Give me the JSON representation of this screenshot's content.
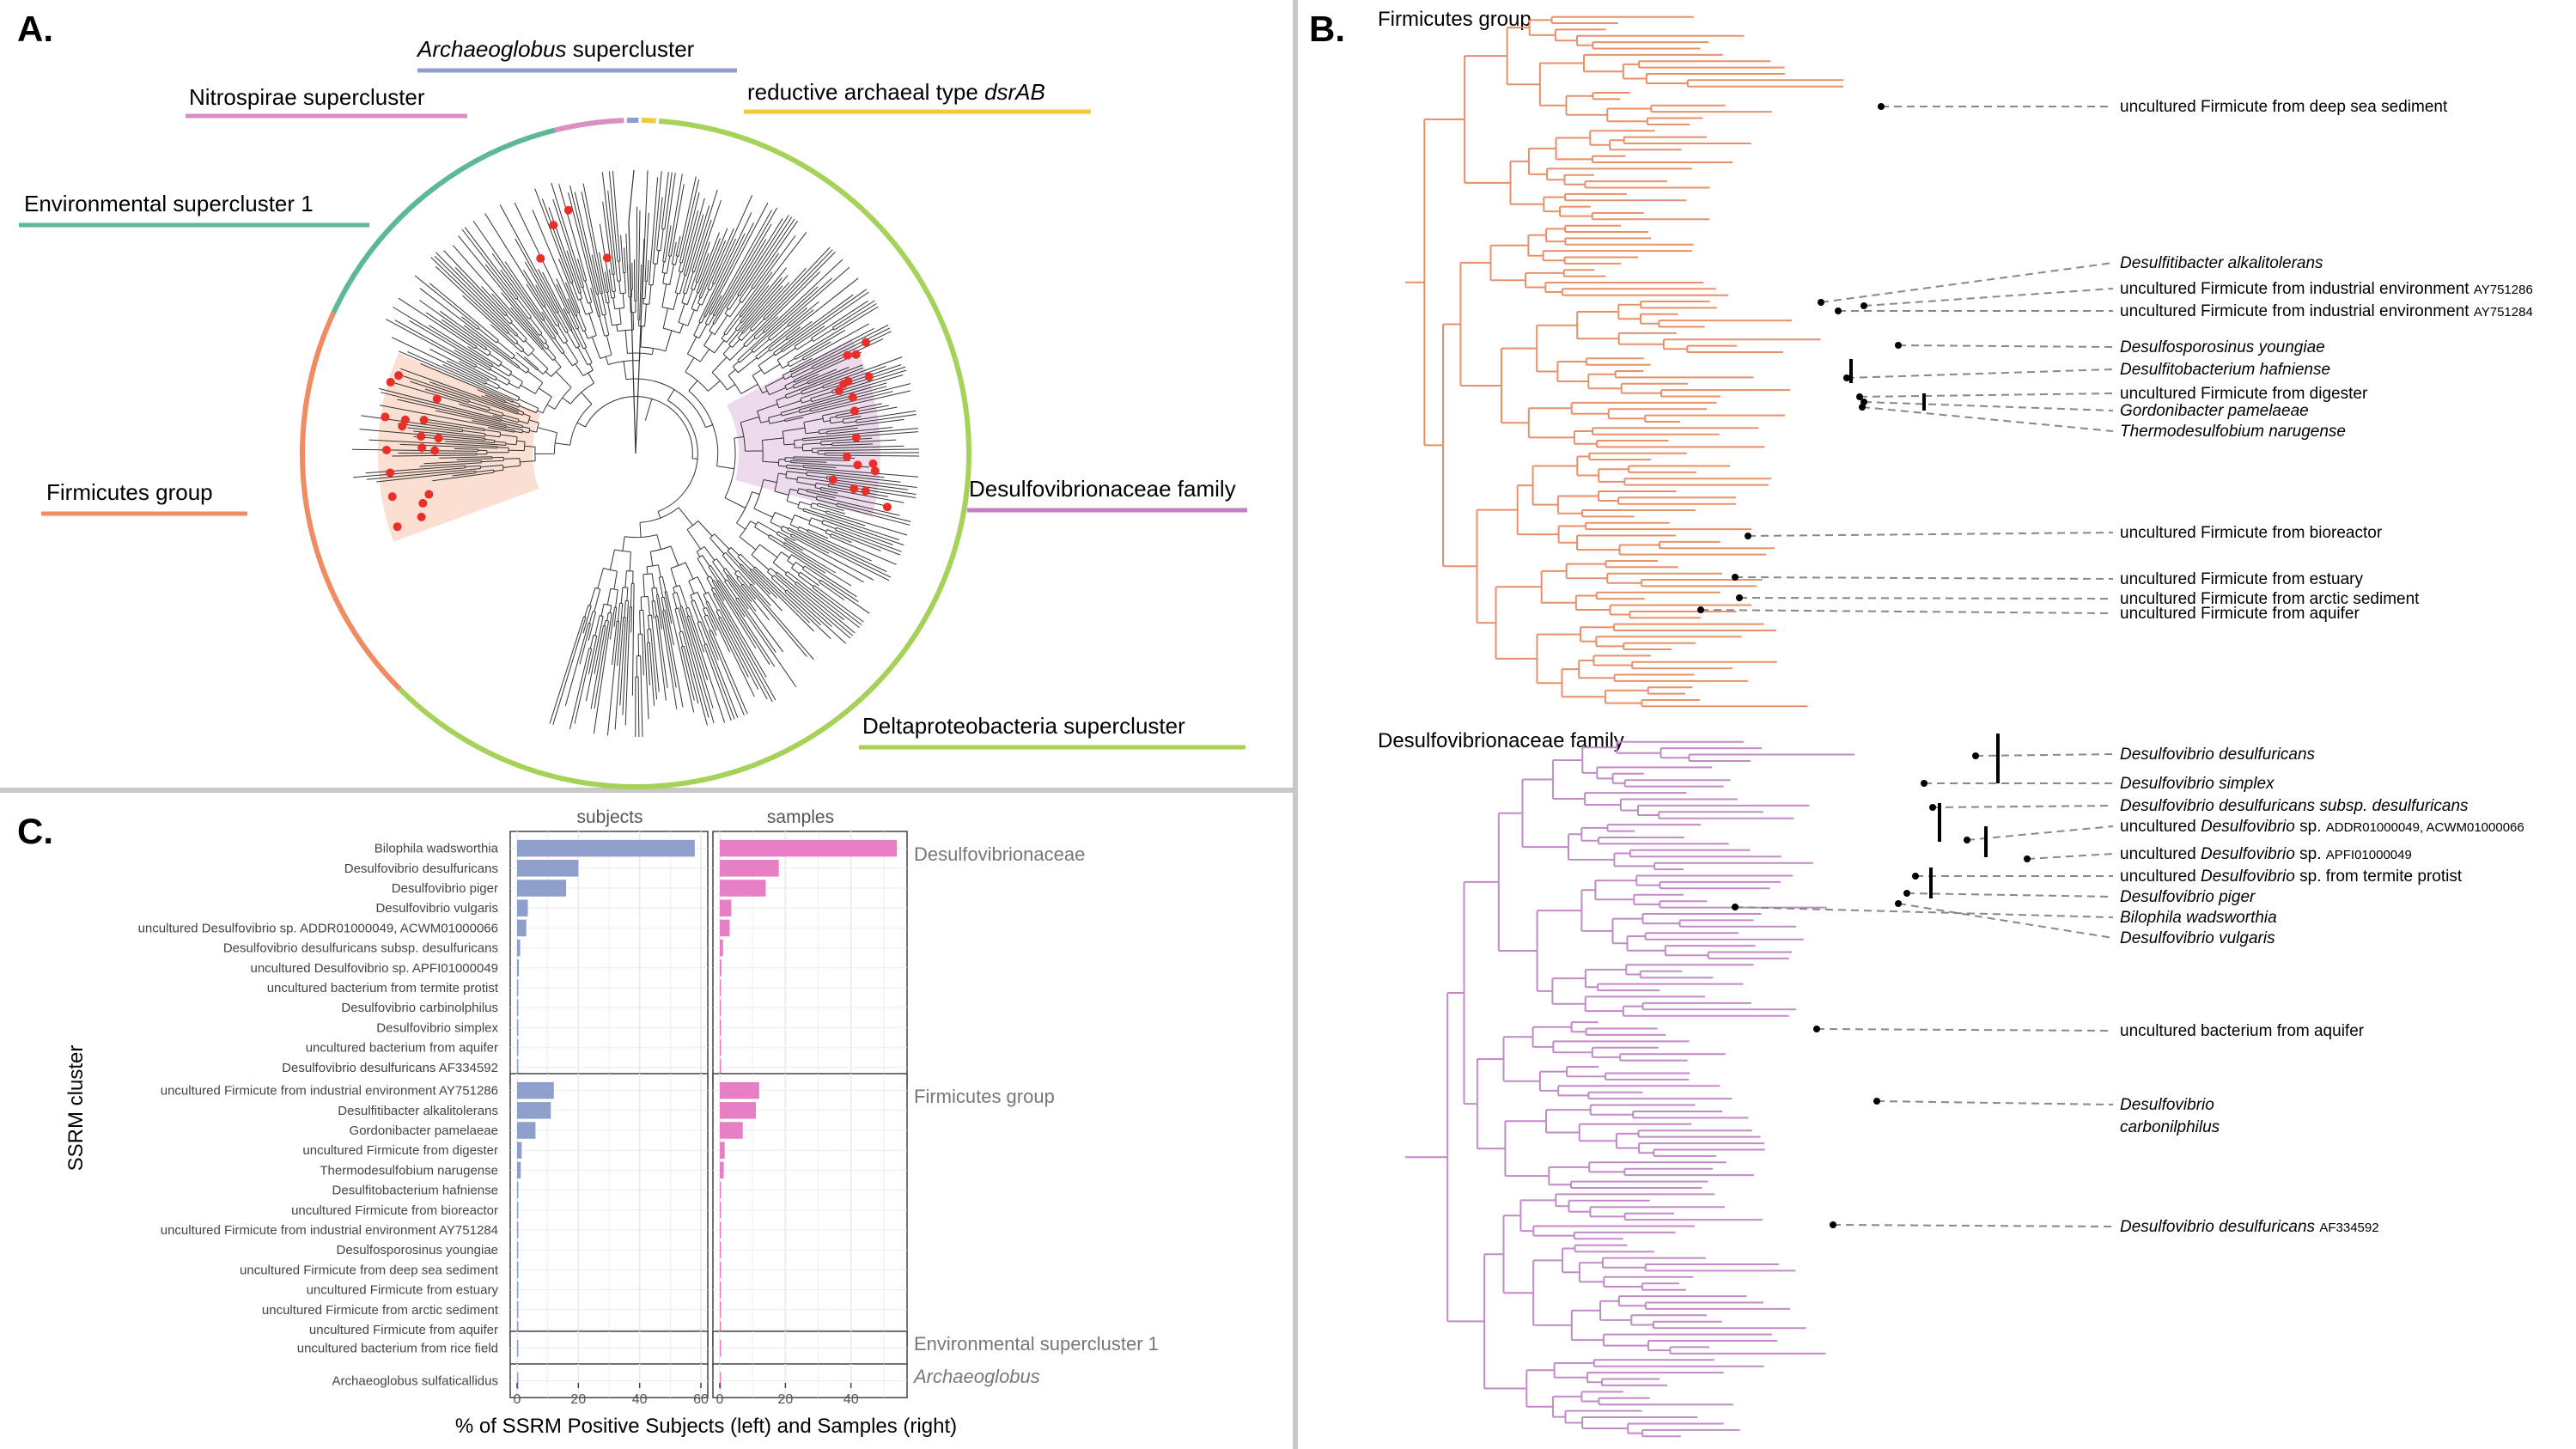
{
  "panels": {
    "a": {
      "letter": "A.",
      "clusters": {
        "archaeoglobus": "Archaeoglobus",
        "archaeoglobus_suffix": "supercluster",
        "nitrospirae": "Nitrospirae supercluster",
        "reductive_prefix": "reductive archaeal type",
        "reductive_gene": "dsrAB",
        "environmental": "Environmental supercluster 1",
        "firmicutes": "Firmicutes group",
        "desulfovibrionaceae": "Desulfovibrionaceae family",
        "deltaproteobacteria": "Deltaproteobacteria supercluster"
      },
      "colors": {
        "archaeoglobus": "#8d9fca",
        "nitrospirae": "#d98fc3",
        "reductive": "#f1cb3a",
        "environmental": "#5bb996",
        "firmicutes": "#ef8c62",
        "desulfovibrionaceae": "#c07fc0",
        "deltaproteobacteria": "#a6d25a",
        "highlight": "#e8302a"
      }
    },
    "b": {
      "letter": "B.",
      "firmicutes_title": "Firmicutes group",
      "desulfo_title": "Desulfovibrionaceae family",
      "firmicutes_labels": [
        {
          "parts": [
            {
              "t": "uncultured Firmicute from deep sea sediment",
              "s": "n"
            }
          ]
        },
        {
          "parts": [
            {
              "t": "Desulfitibacter alkalitolerans",
              "s": "i"
            }
          ]
        },
        {
          "parts": [
            {
              "t": "uncultured Firmicute from industrial environment ",
              "s": "n"
            },
            {
              "t": "AY751286",
              "s": "s"
            }
          ]
        },
        {
          "parts": [
            {
              "t": "uncultured Firmicute from industrial environment ",
              "s": "n"
            },
            {
              "t": "AY751284",
              "s": "s"
            }
          ]
        },
        {
          "parts": [
            {
              "t": "Desulfosporosinus youngiae",
              "s": "i"
            }
          ]
        },
        {
          "parts": [
            {
              "t": "Desulfitobacterium hafniense",
              "s": "i"
            }
          ]
        },
        {
          "parts": [
            {
              "t": "uncultured Firmicute from digester",
              "s": "n"
            }
          ]
        },
        {
          "parts": [
            {
              "t": "Gordonibacter pamelaeae",
              "s": "i"
            }
          ]
        },
        {
          "parts": [
            {
              "t": "Thermodesulfobium narugense",
              "s": "i"
            }
          ]
        },
        {
          "parts": [
            {
              "t": "uncultured Firmicute from bioreactor",
              "s": "n"
            }
          ]
        },
        {
          "parts": [
            {
              "t": "uncultured Firmicute from estuary",
              "s": "n"
            }
          ]
        },
        {
          "parts": [
            {
              "t": "uncultured Firmicute from arctic sediment",
              "s": "n"
            }
          ]
        },
        {
          "parts": [
            {
              "t": "uncultured Firmicute from aquifer",
              "s": "n"
            }
          ]
        }
      ],
      "desulfo_labels": [
        {
          "parts": [
            {
              "t": "Desulfovibrio desulfuricans",
              "s": "i"
            }
          ]
        },
        {
          "parts": [
            {
              "t": "Desulfovibrio simplex",
              "s": "i"
            }
          ]
        },
        {
          "parts": [
            {
              "t": "Desulfovibrio desulfuricans subsp. desulfuricans",
              "s": "i"
            }
          ]
        },
        {
          "parts": [
            {
              "t": "uncultured ",
              "s": "n"
            },
            {
              "t": "Desulfovibrio",
              "s": "i"
            },
            {
              "t": " sp. ",
              "s": "n"
            },
            {
              "t": "ADDR01000049, ACWM01000066",
              "s": "s"
            }
          ]
        },
        {
          "parts": [
            {
              "t": "uncultured ",
              "s": "n"
            },
            {
              "t": "Desulfovibrio",
              "s": "i"
            },
            {
              "t": " sp. ",
              "s": "n"
            },
            {
              "t": "APFI01000049",
              "s": "s"
            }
          ]
        },
        {
          "parts": [
            {
              "t": "uncultured ",
              "s": "n"
            },
            {
              "t": "Desulfovibrio",
              "s": "i"
            },
            {
              "t": " sp. from termite protist",
              "s": "n"
            }
          ]
        },
        {
          "parts": [
            {
              "t": "Desulfovibrio piger",
              "s": "i"
            }
          ]
        },
        {
          "parts": [
            {
              "t": "Bilophila wadsworthia",
              "s": "i"
            }
          ]
        },
        {
          "parts": [
            {
              "t": "Desulfovibrio vulgaris",
              "s": "i"
            }
          ]
        },
        {
          "parts": [
            {
              "t": "uncultured bacterium from aquifer",
              "s": "n"
            }
          ]
        },
        {
          "parts": [
            {
              "t": "Desulfovibrio",
              "s": "i"
            }
          ]
        },
        {
          "parts": [
            {
              "t": "carbonilphilus",
              "s": "i"
            }
          ]
        },
        {
          "parts": [
            {
              "t": "Desulfovibrio desulfuricans ",
              "s": "i"
            },
            {
              "t": "AF334592",
              "s": "s"
            }
          ]
        }
      ],
      "colors": {
        "firmicutes": "#e8906a",
        "desulfo": "#c28ac8"
      }
    },
    "c": {
      "letter": "C.",
      "strip_left": "subjects",
      "strip_right": "samples",
      "y_axis_label": "SSRM cluster",
      "x_axis_label": "% of SSRM Positive Subjects (left) and Samples (right)",
      "x_ticks_left": [
        "0",
        "20",
        "40",
        "60"
      ],
      "x_ticks_right": [
        "0",
        "20",
        "40"
      ],
      "colors": {
        "subjects": "#8d9fca",
        "samples": "#e67fc5"
      }
    }
  },
  "chart_data": {
    "type": "bar",
    "orientation": "horizontal",
    "xlim_subjects": [
      0,
      60
    ],
    "xlim_samples": [
      0,
      55
    ],
    "groups": [
      {
        "name": "Desulfovibrionaceae",
        "italic": false,
        "categories": [
          "Bilophila wadsworthia",
          "Desulfovibrio desulfuricans",
          "Desulfovibrio piger",
          "Desulfovibrio vulgaris",
          "uncultured Desulfovibrio sp. ADDR01000049, ACWM01000066",
          "Desulfovibrio desulfuricans subsp. desulfuricans",
          "uncultured Desulfovibrio sp. APFI01000049",
          "uncultured bacterium from termite protist",
          "Desulfovibrio carbinolphilus",
          "Desulfovibrio simplex",
          "uncultured bacterium from aquifer",
          "Desulfovibrio desulfuricans AF334592"
        ],
        "subjects": [
          58,
          20,
          16,
          3.5,
          3,
          1,
          0.6,
          0.4,
          0.3,
          0.3,
          0.2,
          0.2
        ],
        "samples": [
          54,
          18,
          14,
          3.5,
          3,
          1,
          0.5,
          0.3,
          0.3,
          0.2,
          0.2,
          0.2
        ]
      },
      {
        "name": "Firmicutes group",
        "italic": false,
        "categories": [
          "uncultured Firmicute from industrial environment AY751286",
          "Desulfitibacter alkalitolerans",
          "Gordonibacter pamelaeae",
          "uncultured Firmicute from digester",
          "Thermodesulfobium narugense",
          "Desulfitobacterium hafniense",
          "uncultured Firmicute from bioreactor",
          "uncultured Firmicute from industrial environment AY751284",
          "Desulfosporosinus youngiae",
          "uncultured Firmicute from deep sea sediment",
          "uncultured Firmicute from estuary",
          "uncultured Firmicute from arctic sediment",
          "uncultured Firmicute from aquifer"
        ],
        "subjects": [
          12,
          11,
          6,
          1.5,
          1.2,
          0.4,
          0.3,
          0.3,
          0.2,
          0.2,
          0.2,
          0.2,
          0.2
        ],
        "samples": [
          12,
          11,
          7,
          1.5,
          1.2,
          0.4,
          0.3,
          0.3,
          0.2,
          0.2,
          0.2,
          0.2,
          0.2
        ]
      },
      {
        "name": "Environmental supercluster 1",
        "italic": false,
        "categories": [
          "uncultured bacterium from rice field"
        ],
        "subjects": [
          0.2
        ],
        "samples": [
          0.2
        ]
      },
      {
        "name": "Archaeoglobus",
        "italic": true,
        "categories": [
          "Archaeoglobus sulfaticallidus"
        ],
        "subjects": [
          0.2
        ],
        "samples": [
          0.2
        ]
      }
    ]
  }
}
